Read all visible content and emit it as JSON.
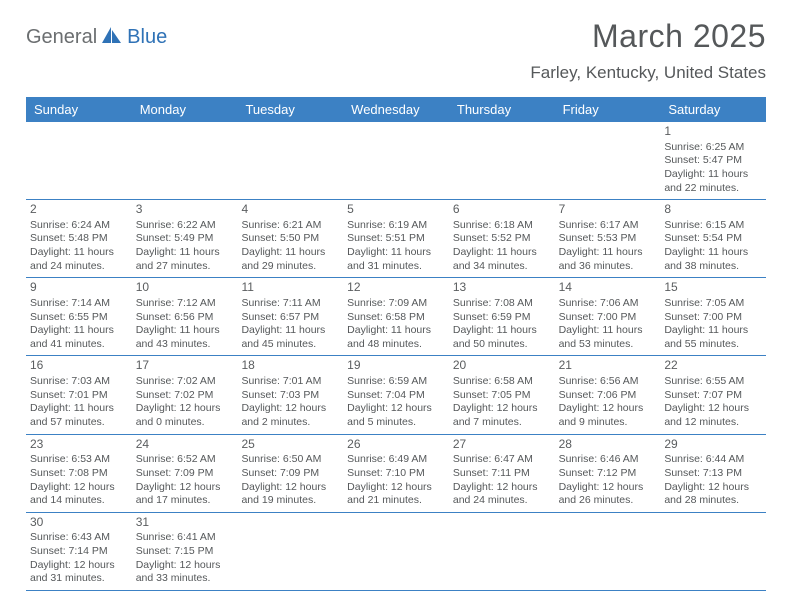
{
  "logo": {
    "part1": "General",
    "part2": "Blue"
  },
  "title": "March 2025",
  "location": "Farley, Kentucky, United States",
  "colors": {
    "header_bg": "#3c81c4",
    "header_text": "#ffffff",
    "text": "#55585a",
    "logo_blue": "#2f72b6",
    "logo_gray": "#6b6e70",
    "border": "#3c81c4"
  },
  "day_headers": [
    "Sunday",
    "Monday",
    "Tuesday",
    "Wednesday",
    "Thursday",
    "Friday",
    "Saturday"
  ],
  "weeks": [
    [
      null,
      null,
      null,
      null,
      null,
      null,
      {
        "n": "1",
        "sunrise": "Sunrise: 6:25 AM",
        "sunset": "Sunset: 5:47 PM",
        "day1": "Daylight: 11 hours",
        "day2": "and 22 minutes."
      }
    ],
    [
      {
        "n": "2",
        "sunrise": "Sunrise: 6:24 AM",
        "sunset": "Sunset: 5:48 PM",
        "day1": "Daylight: 11 hours",
        "day2": "and 24 minutes."
      },
      {
        "n": "3",
        "sunrise": "Sunrise: 6:22 AM",
        "sunset": "Sunset: 5:49 PM",
        "day1": "Daylight: 11 hours",
        "day2": "and 27 minutes."
      },
      {
        "n": "4",
        "sunrise": "Sunrise: 6:21 AM",
        "sunset": "Sunset: 5:50 PM",
        "day1": "Daylight: 11 hours",
        "day2": "and 29 minutes."
      },
      {
        "n": "5",
        "sunrise": "Sunrise: 6:19 AM",
        "sunset": "Sunset: 5:51 PM",
        "day1": "Daylight: 11 hours",
        "day2": "and 31 minutes."
      },
      {
        "n": "6",
        "sunrise": "Sunrise: 6:18 AM",
        "sunset": "Sunset: 5:52 PM",
        "day1": "Daylight: 11 hours",
        "day2": "and 34 minutes."
      },
      {
        "n": "7",
        "sunrise": "Sunrise: 6:17 AM",
        "sunset": "Sunset: 5:53 PM",
        "day1": "Daylight: 11 hours",
        "day2": "and 36 minutes."
      },
      {
        "n": "8",
        "sunrise": "Sunrise: 6:15 AM",
        "sunset": "Sunset: 5:54 PM",
        "day1": "Daylight: 11 hours",
        "day2": "and 38 minutes."
      }
    ],
    [
      {
        "n": "9",
        "sunrise": "Sunrise: 7:14 AM",
        "sunset": "Sunset: 6:55 PM",
        "day1": "Daylight: 11 hours",
        "day2": "and 41 minutes."
      },
      {
        "n": "10",
        "sunrise": "Sunrise: 7:12 AM",
        "sunset": "Sunset: 6:56 PM",
        "day1": "Daylight: 11 hours",
        "day2": "and 43 minutes."
      },
      {
        "n": "11",
        "sunrise": "Sunrise: 7:11 AM",
        "sunset": "Sunset: 6:57 PM",
        "day1": "Daylight: 11 hours",
        "day2": "and 45 minutes."
      },
      {
        "n": "12",
        "sunrise": "Sunrise: 7:09 AM",
        "sunset": "Sunset: 6:58 PM",
        "day1": "Daylight: 11 hours",
        "day2": "and 48 minutes."
      },
      {
        "n": "13",
        "sunrise": "Sunrise: 7:08 AM",
        "sunset": "Sunset: 6:59 PM",
        "day1": "Daylight: 11 hours",
        "day2": "and 50 minutes."
      },
      {
        "n": "14",
        "sunrise": "Sunrise: 7:06 AM",
        "sunset": "Sunset: 7:00 PM",
        "day1": "Daylight: 11 hours",
        "day2": "and 53 minutes."
      },
      {
        "n": "15",
        "sunrise": "Sunrise: 7:05 AM",
        "sunset": "Sunset: 7:00 PM",
        "day1": "Daylight: 11 hours",
        "day2": "and 55 minutes."
      }
    ],
    [
      {
        "n": "16",
        "sunrise": "Sunrise: 7:03 AM",
        "sunset": "Sunset: 7:01 PM",
        "day1": "Daylight: 11 hours",
        "day2": "and 57 minutes."
      },
      {
        "n": "17",
        "sunrise": "Sunrise: 7:02 AM",
        "sunset": "Sunset: 7:02 PM",
        "day1": "Daylight: 12 hours",
        "day2": "and 0 minutes."
      },
      {
        "n": "18",
        "sunrise": "Sunrise: 7:01 AM",
        "sunset": "Sunset: 7:03 PM",
        "day1": "Daylight: 12 hours",
        "day2": "and 2 minutes."
      },
      {
        "n": "19",
        "sunrise": "Sunrise: 6:59 AM",
        "sunset": "Sunset: 7:04 PM",
        "day1": "Daylight: 12 hours",
        "day2": "and 5 minutes."
      },
      {
        "n": "20",
        "sunrise": "Sunrise: 6:58 AM",
        "sunset": "Sunset: 7:05 PM",
        "day1": "Daylight: 12 hours",
        "day2": "and 7 minutes."
      },
      {
        "n": "21",
        "sunrise": "Sunrise: 6:56 AM",
        "sunset": "Sunset: 7:06 PM",
        "day1": "Daylight: 12 hours",
        "day2": "and 9 minutes."
      },
      {
        "n": "22",
        "sunrise": "Sunrise: 6:55 AM",
        "sunset": "Sunset: 7:07 PM",
        "day1": "Daylight: 12 hours",
        "day2": "and 12 minutes."
      }
    ],
    [
      {
        "n": "23",
        "sunrise": "Sunrise: 6:53 AM",
        "sunset": "Sunset: 7:08 PM",
        "day1": "Daylight: 12 hours",
        "day2": "and 14 minutes."
      },
      {
        "n": "24",
        "sunrise": "Sunrise: 6:52 AM",
        "sunset": "Sunset: 7:09 PM",
        "day1": "Daylight: 12 hours",
        "day2": "and 17 minutes."
      },
      {
        "n": "25",
        "sunrise": "Sunrise: 6:50 AM",
        "sunset": "Sunset: 7:09 PM",
        "day1": "Daylight: 12 hours",
        "day2": "and 19 minutes."
      },
      {
        "n": "26",
        "sunrise": "Sunrise: 6:49 AM",
        "sunset": "Sunset: 7:10 PM",
        "day1": "Daylight: 12 hours",
        "day2": "and 21 minutes."
      },
      {
        "n": "27",
        "sunrise": "Sunrise: 6:47 AM",
        "sunset": "Sunset: 7:11 PM",
        "day1": "Daylight: 12 hours",
        "day2": "and 24 minutes."
      },
      {
        "n": "28",
        "sunrise": "Sunrise: 6:46 AM",
        "sunset": "Sunset: 7:12 PM",
        "day1": "Daylight: 12 hours",
        "day2": "and 26 minutes."
      },
      {
        "n": "29",
        "sunrise": "Sunrise: 6:44 AM",
        "sunset": "Sunset: 7:13 PM",
        "day1": "Daylight: 12 hours",
        "day2": "and 28 minutes."
      }
    ],
    [
      {
        "n": "30",
        "sunrise": "Sunrise: 6:43 AM",
        "sunset": "Sunset: 7:14 PM",
        "day1": "Daylight: 12 hours",
        "day2": "and 31 minutes."
      },
      {
        "n": "31",
        "sunrise": "Sunrise: 6:41 AM",
        "sunset": "Sunset: 7:15 PM",
        "day1": "Daylight: 12 hours",
        "day2": "and 33 minutes."
      },
      null,
      null,
      null,
      null,
      null
    ]
  ]
}
